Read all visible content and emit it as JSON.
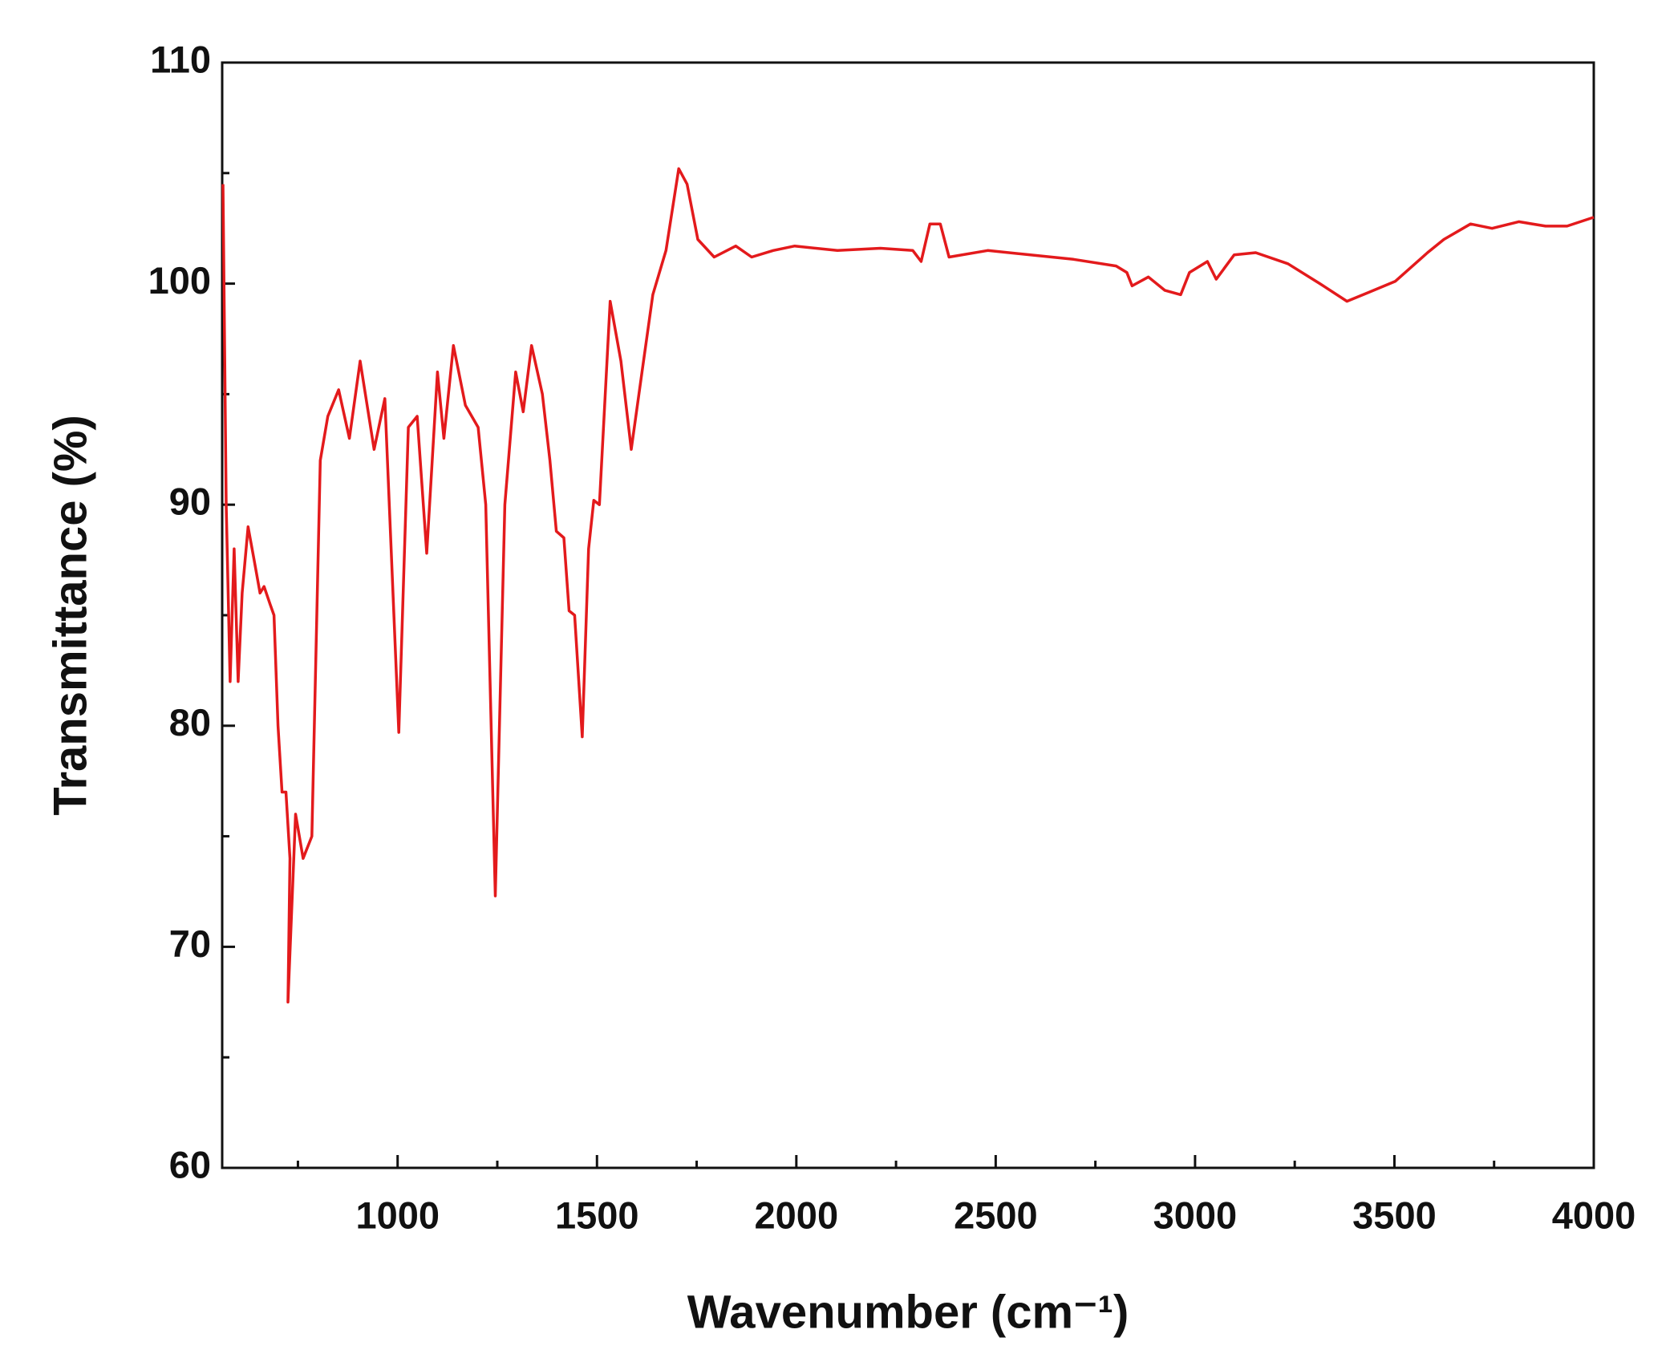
{
  "chart_data": {
    "type": "line",
    "x_label": "Wavenumber (cm⁻¹)",
    "y_label": "Transmittance (%)",
    "x": [
      562,
      570,
      580,
      590,
      600,
      610,
      625,
      640,
      655,
      665,
      680,
      690,
      700,
      710,
      720,
      730,
      725,
      744,
      763,
      785,
      806,
      825,
      852,
      879,
      906,
      941,
      968,
      1003,
      1027,
      1049,
      1073,
      1100,
      1116,
      1140,
      1170,
      1202,
      1221,
      1245,
      1269,
      1296,
      1315,
      1336,
      1363,
      1382,
      1398,
      1417,
      1430,
      1444,
      1463,
      1479,
      1492,
      1506,
      1533,
      1560,
      1586,
      1613,
      1640,
      1673,
      1705,
      1726,
      1753,
      1794,
      1848,
      1888,
      1942,
      1996,
      2103,
      2211,
      2292,
      2313,
      2335,
      2361,
      2383,
      2480,
      2587,
      2695,
      2802,
      2829,
      2842,
      2883,
      2924,
      2964,
      2986,
      3031,
      3053,
      3098,
      3152,
      3233,
      3313,
      3381,
      3435,
      3502,
      3583,
      3624,
      3691,
      3745,
      3812,
      3879,
      3933,
      4000
    ],
    "series": [
      {
        "color": "#e31a1c",
        "values": [
          104.5,
          90,
          82,
          88,
          82,
          86,
          89,
          87.5,
          86,
          86.3,
          85.5,
          85,
          80,
          77,
          77,
          74,
          67.5,
          76,
          74,
          75,
          92,
          94,
          95.2,
          93,
          96.5,
          92.5,
          94.8,
          79.7,
          93.5,
          94,
          87.8,
          96,
          93,
          97.2,
          94.5,
          93.5,
          90,
          72.3,
          90,
          96,
          94.2,
          97.2,
          95,
          92,
          88.8,
          88.5,
          85.2,
          85,
          79.5,
          88,
          90.2,
          90,
          99.2,
          96.5,
          92.5,
          96,
          99.5,
          101.5,
          105.2,
          104.5,
          102,
          101.2,
          101.7,
          101.2,
          101.5,
          101.7,
          101.5,
          101.6,
          101.5,
          101,
          102.7,
          102.7,
          101.2,
          101.5,
          101.3,
          101.1,
          100.8,
          100.5,
          99.9,
          100.3,
          99.7,
          99.5,
          100.5,
          101,
          100.2,
          101.3,
          101.4,
          100.9,
          100,
          99.2,
          99.6,
          100.1,
          101.4,
          102,
          102.7,
          102.5,
          102.8,
          102.6,
          102.6,
          103
        ]
      }
    ],
    "xlim": [
      560,
      4000
    ],
    "xticks": [
      1000,
      1500,
      2000,
      2500,
      3000,
      3500,
      4000
    ],
    "xminorticks": [
      750,
      1250,
      1750,
      2250,
      2750,
      3250,
      3750
    ],
    "ylim": [
      60,
      110
    ],
    "yticks": [
      60,
      70,
      80,
      90,
      100,
      110
    ],
    "yminorticks": [
      65,
      75,
      85,
      95,
      105
    ],
    "grid": false
  }
}
